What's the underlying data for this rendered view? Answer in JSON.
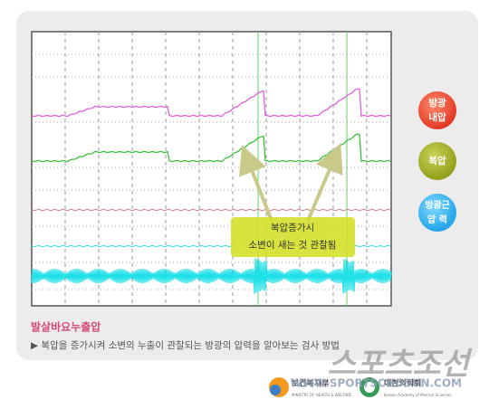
{
  "callout": {
    "lines": [
      "복압증가시",
      "소변이 새는 것 관찰됨"
    ]
  },
  "buttons": [
    {
      "lines": [
        "방광",
        "내압"
      ]
    },
    {
      "lines": [
        "복압"
      ]
    },
    {
      "lines": [
        "방광근",
        "압 력"
      ]
    }
  ],
  "caption": {
    "title": "발살바요누출압",
    "text": "▶ 복압을 증가시켜 소변의 누출이 관찰되는 방광의 압력을 알아보는 검사 방법"
  },
  "logos": {
    "ministry": "보건복지부",
    "ministry_en": "MINISTRY OF HEALTH & WELFARE",
    "academy": "대한의학회",
    "academy_en": "Korean Academy of Medical Sciences"
  },
  "watermark": {
    "brand": "스포츠조선",
    "url": "WWW.SPORTSCHOSUN.COM"
  }
}
